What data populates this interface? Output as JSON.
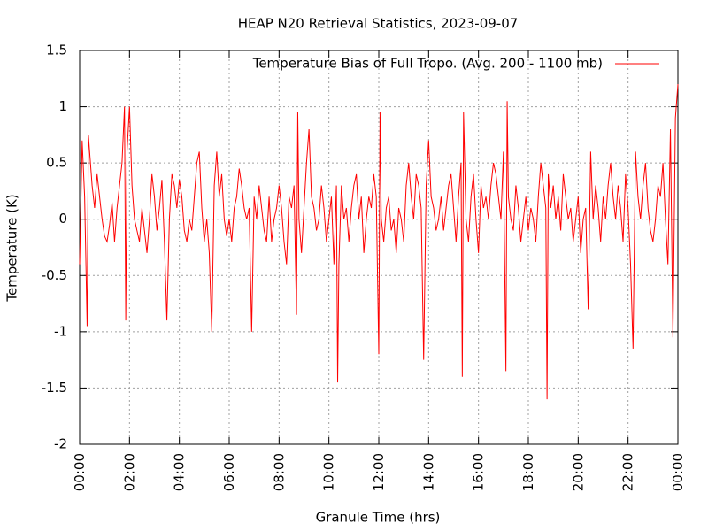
{
  "chart_data": {
    "type": "line",
    "title": "HEAP N20 Retrieval Statistics, 2023-09-07",
    "xlabel": "Granule Time (hrs)",
    "ylabel": "Temperature (K)",
    "xlim": [
      0,
      24
    ],
    "ylim": [
      -2,
      1.5
    ],
    "xticks": [
      {
        "value": 0,
        "label": "00:00"
      },
      {
        "value": 2,
        "label": "02:00"
      },
      {
        "value": 4,
        "label": "04:00"
      },
      {
        "value": 6,
        "label": "06:00"
      },
      {
        "value": 8,
        "label": "08:00"
      },
      {
        "value": 10,
        "label": "10:00"
      },
      {
        "value": 12,
        "label": "12:00"
      },
      {
        "value": 14,
        "label": "14:00"
      },
      {
        "value": 16,
        "label": "16:00"
      },
      {
        "value": 18,
        "label": "18:00"
      },
      {
        "value": 20,
        "label": "20:00"
      },
      {
        "value": 22,
        "label": "22:00"
      },
      {
        "value": 24,
        "label": "00:00"
      }
    ],
    "yticks": [
      -2,
      -1.5,
      -1,
      -0.5,
      0,
      0.5,
      1,
      1.5
    ],
    "grid": true,
    "legend": "top-right",
    "x": [
      0.0,
      0.1,
      0.2,
      0.3,
      0.35,
      0.5,
      0.6,
      0.7,
      0.8,
      0.9,
      1.0,
      1.1,
      1.2,
      1.3,
      1.4,
      1.5,
      1.6,
      1.7,
      1.8,
      1.85,
      1.9,
      2.0,
      2.1,
      2.2,
      2.3,
      2.4,
      2.5,
      2.6,
      2.7,
      2.8,
      2.9,
      3.0,
      3.1,
      3.2,
      3.3,
      3.4,
      3.5,
      3.6,
      3.7,
      3.8,
      3.9,
      4.0,
      4.1,
      4.2,
      4.3,
      4.4,
      4.5,
      4.6,
      4.7,
      4.8,
      4.9,
      5.0,
      5.1,
      5.2,
      5.3,
      5.4,
      5.5,
      5.6,
      5.7,
      5.8,
      5.9,
      6.0,
      6.1,
      6.2,
      6.3,
      6.4,
      6.5,
      6.6,
      6.7,
      6.8,
      6.9,
      7.0,
      7.1,
      7.2,
      7.3,
      7.4,
      7.5,
      7.6,
      7.7,
      7.8,
      7.9,
      8.0,
      8.1,
      8.2,
      8.3,
      8.4,
      8.5,
      8.6,
      8.7,
      8.75,
      8.8,
      8.9,
      9.0,
      9.1,
      9.2,
      9.3,
      9.4,
      9.5,
      9.6,
      9.7,
      9.8,
      9.9,
      10.0,
      10.1,
      10.2,
      10.3,
      10.35,
      10.4,
      10.5,
      10.6,
      10.7,
      10.8,
      10.9,
      11.0,
      11.1,
      11.2,
      11.3,
      11.4,
      11.5,
      11.6,
      11.7,
      11.8,
      11.9,
      12.0,
      12.05,
      12.1,
      12.2,
      12.3,
      12.4,
      12.5,
      12.6,
      12.7,
      12.8,
      12.9,
      13.0,
      13.1,
      13.2,
      13.3,
      13.4,
      13.5,
      13.6,
      13.7,
      13.8,
      13.9,
      14.0,
      14.1,
      14.2,
      14.3,
      14.4,
      14.5,
      14.6,
      14.7,
      14.8,
      14.9,
      15.0,
      15.1,
      15.2,
      15.3,
      15.35,
      15.4,
      15.5,
      15.6,
      15.7,
      15.8,
      15.9,
      16.0,
      16.1,
      16.2,
      16.3,
      16.4,
      16.5,
      16.6,
      16.7,
      16.8,
      16.9,
      17.0,
      17.1,
      17.15,
      17.2,
      17.3,
      17.4,
      17.5,
      17.6,
      17.7,
      17.8,
      17.9,
      18.0,
      18.1,
      18.2,
      18.3,
      18.4,
      18.5,
      18.6,
      18.7,
      18.75,
      18.8,
      18.9,
      19.0,
      19.1,
      19.2,
      19.3,
      19.4,
      19.5,
      19.6,
      19.7,
      19.8,
      19.9,
      20.0,
      20.1,
      20.2,
      20.3,
      20.4,
      20.5,
      20.6,
      20.7,
      20.8,
      20.9,
      21.0,
      21.1,
      21.2,
      21.3,
      21.4,
      21.5,
      21.6,
      21.7,
      21.8,
      21.9,
      22.0,
      22.1,
      22.2,
      22.3,
      22.4,
      22.5,
      22.6,
      22.7,
      22.8,
      22.9,
      23.0,
      23.1,
      23.2,
      23.3,
      23.4,
      23.5,
      23.6,
      23.7,
      23.8,
      23.9,
      24.0
    ],
    "series": [
      {
        "name": "Temperature Bias of Full Tropo. (Avg. 200 - 1100 mb)",
        "color": "#ff0000",
        "values": [
          -0.4,
          0.7,
          0.2,
          -0.95,
          0.75,
          0.3,
          0.1,
          0.4,
          0.2,
          0.0,
          -0.15,
          -0.2,
          -0.05,
          0.15,
          -0.2,
          0.1,
          0.3,
          0.5,
          1.0,
          -0.9,
          0.6,
          1.0,
          0.3,
          0.0,
          -0.1,
          -0.2,
          0.1,
          -0.1,
          -0.3,
          0.0,
          0.4,
          0.2,
          -0.1,
          0.1,
          0.35,
          -0.2,
          -0.9,
          0.0,
          0.4,
          0.3,
          0.1,
          0.35,
          0.2,
          -0.1,
          -0.2,
          0.0,
          -0.1,
          0.2,
          0.5,
          0.6,
          0.1,
          -0.2,
          0.0,
          -0.3,
          -1.0,
          0.3,
          0.6,
          0.2,
          0.4,
          0.0,
          -0.15,
          0.0,
          -0.2,
          0.1,
          0.2,
          0.45,
          0.3,
          0.1,
          0.0,
          0.1,
          -1.0,
          0.2,
          0.0,
          0.3,
          0.1,
          -0.1,
          -0.2,
          0.2,
          -0.2,
          0.0,
          0.1,
          0.3,
          0.1,
          -0.2,
          -0.4,
          0.2,
          0.1,
          0.3,
          -0.85,
          0.95,
          0.0,
          -0.3,
          0.1,
          0.5,
          0.8,
          0.2,
          0.1,
          -0.1,
          0.0,
          0.3,
          0.1,
          -0.2,
          0.0,
          0.2,
          -0.4,
          0.3,
          -1.45,
          -0.4,
          0.3,
          0.0,
          0.1,
          -0.2,
          0.1,
          0.3,
          0.4,
          0.0,
          0.2,
          -0.3,
          0.0,
          0.2,
          0.1,
          0.4,
          0.2,
          -1.2,
          0.95,
          0.0,
          -0.2,
          0.1,
          0.2,
          -0.1,
          0.0,
          -0.3,
          0.1,
          0.0,
          -0.2,
          0.3,
          0.5,
          0.2,
          0.0,
          0.4,
          0.3,
          0.1,
          -1.25,
          0.3,
          0.7,
          0.2,
          0.1,
          -0.1,
          0.0,
          0.2,
          -0.1,
          0.1,
          0.3,
          0.4,
          0.1,
          -0.2,
          0.2,
          0.5,
          -1.4,
          0.95,
          0.0,
          -0.2,
          0.2,
          0.4,
          0.0,
          -0.3,
          0.3,
          0.1,
          0.2,
          0.0,
          0.3,
          0.5,
          0.4,
          0.2,
          0.0,
          0.6,
          -1.35,
          1.05,
          0.2,
          0.0,
          -0.1,
          0.3,
          0.1,
          -0.2,
          0.0,
          0.2,
          -0.1,
          0.1,
          0.0,
          -0.2,
          0.2,
          0.5,
          0.3,
          0.1,
          -1.6,
          0.4,
          0.1,
          0.3,
          0.0,
          0.2,
          -0.1,
          0.4,
          0.2,
          0.0,
          0.1,
          -0.2,
          0.0,
          0.2,
          -0.3,
          0.0,
          0.1,
          -0.8,
          0.6,
          0.0,
          0.3,
          0.1,
          -0.2,
          0.2,
          0.0,
          0.3,
          0.5,
          0.2,
          0.0,
          0.3,
          0.1,
          -0.2,
          0.4,
          0.1,
          -0.4,
          -1.15,
          0.6,
          0.2,
          0.0,
          0.3,
          0.5,
          0.1,
          -0.1,
          -0.2,
          0.0,
          0.3,
          0.2,
          0.5,
          0.0,
          -0.4,
          0.8,
          -1.05,
          0.9,
          1.2
        ]
      }
    ]
  }
}
